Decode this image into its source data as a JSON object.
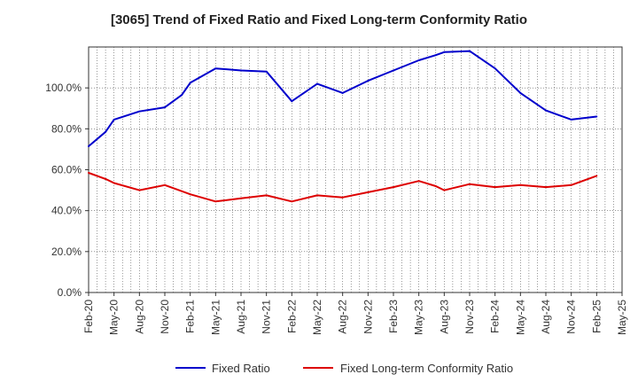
{
  "chart_data": {
    "type": "line",
    "title": "[3065]  Trend of Fixed Ratio and Fixed Long-term Conformity Ratio",
    "xlabel": "",
    "ylabel": "",
    "x_ticks": [
      "Feb-20",
      "May-20",
      "Aug-20",
      "Nov-20",
      "Feb-21",
      "May-21",
      "Aug-21",
      "Nov-21",
      "Feb-22",
      "May-22",
      "Aug-22",
      "Nov-22",
      "Feb-23",
      "May-23",
      "Aug-23",
      "Nov-23",
      "Feb-24",
      "May-24",
      "Aug-24",
      "Nov-24",
      "Feb-25",
      "May-25"
    ],
    "y_ticks": [
      "0.0%",
      "20.0%",
      "40.0%",
      "60.0%",
      "80.0%",
      "100.0%"
    ],
    "ylim": [
      0,
      120
    ],
    "grid": true,
    "legend_position": "bottom",
    "x": [
      "Feb-20",
      "Apr-20",
      "May-20",
      "Aug-20",
      "Nov-20",
      "Jan-21",
      "Feb-21",
      "May-21",
      "Aug-21",
      "Nov-21",
      "Feb-22",
      "May-22",
      "Aug-22",
      "Nov-22",
      "Feb-23",
      "May-23",
      "Jul-23",
      "Aug-23",
      "Nov-23",
      "Feb-24",
      "May-24",
      "Aug-24",
      "Nov-24",
      "Feb-25"
    ],
    "series": [
      {
        "name": "Fixed Ratio",
        "color": "#0000cc",
        "values": [
          71.5,
          78.5,
          84.5,
          88.5,
          90.5,
          96.5,
          102.5,
          109.5,
          108.5,
          108.0,
          93.5,
          102.0,
          97.5,
          103.5,
          108.5,
          113.5,
          116.0,
          117.5,
          118.0,
          109.5,
          97.5,
          89.0,
          84.5,
          86.0
        ]
      },
      {
        "name": "Fixed Long-term Conformity Ratio",
        "color": "#dd0000",
        "values": [
          58.5,
          55.5,
          53.5,
          50.0,
          52.5,
          49.5,
          48.0,
          44.5,
          46.0,
          47.5,
          44.5,
          47.5,
          46.5,
          49.0,
          51.5,
          54.5,
          52.0,
          50.0,
          53.0,
          51.5,
          52.5,
          51.5,
          52.5,
          57.0
        ]
      }
    ]
  }
}
